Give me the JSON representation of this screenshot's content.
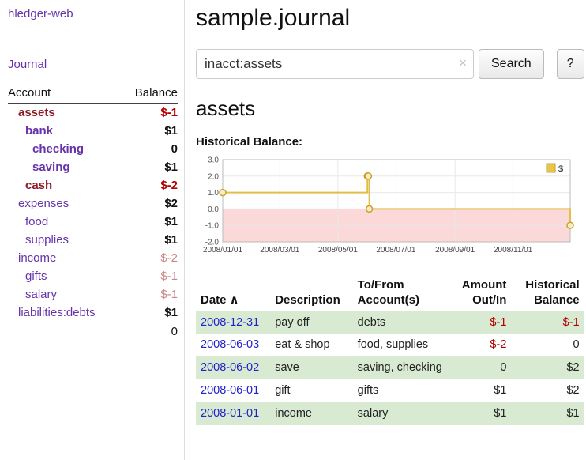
{
  "sidebar": {
    "app_title": "hledger-web",
    "journal_link": "Journal",
    "accounts": {
      "col_account": "Account",
      "col_balance": "Balance",
      "rows": [
        {
          "name": "assets",
          "balance": "$-1",
          "depth": 1,
          "bold": true,
          "name_class": "maroon",
          "bal_class": "neg"
        },
        {
          "name": "bank",
          "balance": "$1",
          "depth": 2,
          "bold": true,
          "name_class": "purple",
          "bal_class": ""
        },
        {
          "name": "checking",
          "balance": "0",
          "depth": 3,
          "bold": true,
          "name_class": "purple",
          "bal_class": ""
        },
        {
          "name": "saving",
          "balance": "$1",
          "depth": 3,
          "bold": true,
          "name_class": "purple",
          "bal_class": ""
        },
        {
          "name": "cash",
          "balance": "$-2",
          "depth": 2,
          "bold": true,
          "name_class": "maroon",
          "bal_class": "neg"
        },
        {
          "name": "expenses",
          "balance": "$2",
          "depth": 1,
          "bold": false,
          "name_class": "purple",
          "bal_class": ""
        },
        {
          "name": "food",
          "balance": "$1",
          "depth": 2,
          "bold": false,
          "name_class": "purple",
          "bal_class": ""
        },
        {
          "name": "supplies",
          "balance": "$1",
          "depth": 2,
          "bold": false,
          "name_class": "purple",
          "bal_class": ""
        },
        {
          "name": "income",
          "balance": "$-2",
          "depth": 1,
          "bold": false,
          "name_class": "purple",
          "bal_class": "neg-faded"
        },
        {
          "name": "gifts",
          "balance": "$-1",
          "depth": 2,
          "bold": false,
          "name_class": "purple",
          "bal_class": "neg-faded"
        },
        {
          "name": "salary",
          "balance": "$-1",
          "depth": 2,
          "bold": false,
          "name_class": "purple",
          "bal_class": "neg-faded"
        },
        {
          "name": "liabilities:debts",
          "balance": "$1",
          "depth": 1,
          "bold": false,
          "name_class": "purple",
          "bal_class": ""
        }
      ],
      "total": "0"
    }
  },
  "header": {
    "title": "sample.journal"
  },
  "search": {
    "value": "inacct:assets",
    "clear_icon": "×",
    "button_label": "Search",
    "help_label": "?"
  },
  "account_page": {
    "title": "assets",
    "chart_label": "Historical Balance:"
  },
  "chart_data": {
    "type": "line",
    "step": true,
    "title": "Historical Balance",
    "x_range": [
      "2008-01-01",
      "2008-12-31"
    ],
    "ylim": [
      -2,
      3
    ],
    "yticks": [
      "3.0",
      "2.0",
      "1.0",
      "0.0",
      "-1.0",
      "-2.0"
    ],
    "xticks": [
      "2008/01/01",
      "2008/03/01",
      "2008/05/01",
      "2008/07/01",
      "2008/09/01",
      "2008/11/01"
    ],
    "series": [
      {
        "name": "$",
        "points": [
          [
            "2008-01-01",
            1
          ],
          [
            "2008-06-01",
            2
          ],
          [
            "2008-06-02",
            2
          ],
          [
            "2008-06-03",
            0
          ],
          [
            "2008-12-31",
            -1
          ]
        ]
      }
    ],
    "legend": {
      "label": "$",
      "position": "top-right"
    },
    "grid": true,
    "colors": {
      "line": "#e3bd4a",
      "marker_stroke": "#c9a227",
      "marker_fill": "#f6ecc8",
      "negative_region": "#fbd9d9",
      "grid": "#e8e8e8",
      "border": "#bbbbbb",
      "legend_fill": "#e8c44f"
    }
  },
  "register": {
    "headers": {
      "date": "Date",
      "description": "Description",
      "accounts": "To/From Account(s)",
      "amount": "Amount Out/In",
      "balance": "Historical Balance"
    },
    "sort_icon": "∧",
    "rows": [
      {
        "date": "2008-12-31",
        "description": "pay off",
        "accounts": "debts",
        "amount": "$-1",
        "balance": "$-1",
        "amount_neg": true,
        "balance_neg": true,
        "shade": true
      },
      {
        "date": "2008-06-03",
        "description": "eat & shop",
        "accounts": "food, supplies",
        "amount": "$-2",
        "balance": "0",
        "amount_neg": true,
        "balance_neg": false,
        "shade": false
      },
      {
        "date": "2008-06-02",
        "description": "save",
        "accounts": "saving, checking",
        "amount": "0",
        "balance": "$2",
        "amount_neg": false,
        "balance_neg": false,
        "shade": true
      },
      {
        "date": "2008-06-01",
        "description": "gift",
        "accounts": "gifts",
        "amount": "$1",
        "balance": "$2",
        "amount_neg": false,
        "balance_neg": false,
        "shade": false
      },
      {
        "date": "2008-01-01",
        "description": "income",
        "accounts": "salary",
        "amount": "$1",
        "balance": "$1",
        "amount_neg": false,
        "balance_neg": false,
        "shade": true
      }
    ]
  },
  "colors": {
    "link_purple": "#6633aa",
    "account_negative_name": "#8b1a26",
    "negative_amount": "#b30000",
    "faded_negative": "#cc8888",
    "date_link_blue": "#2222cc",
    "row_shade_green": "#d9ead3"
  }
}
